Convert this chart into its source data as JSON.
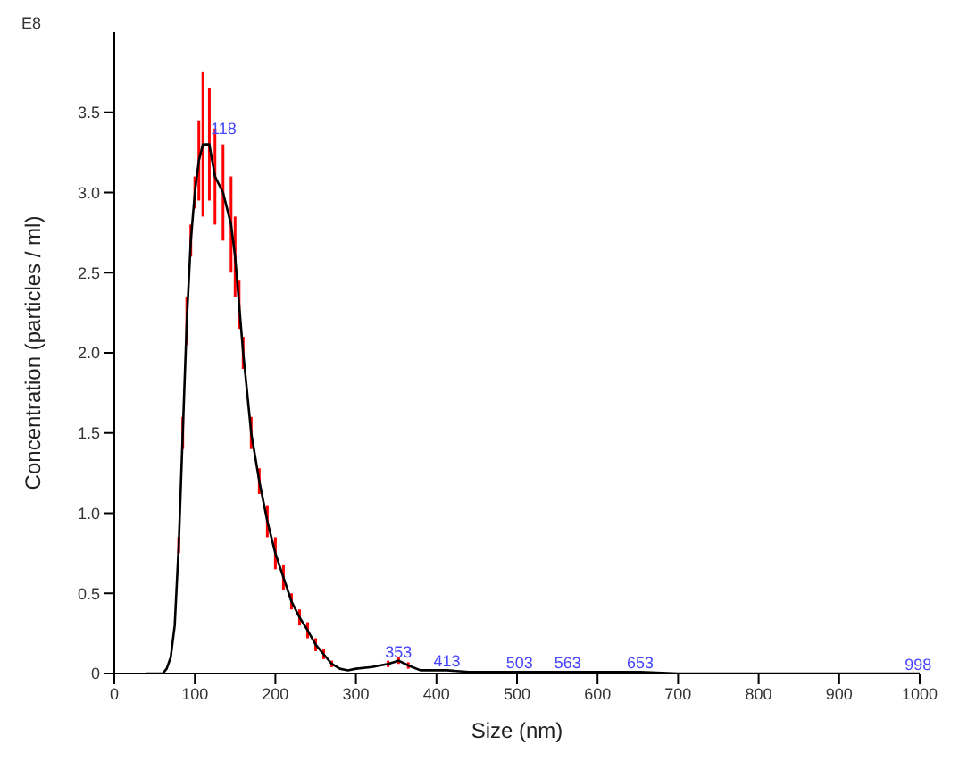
{
  "chart_data": {
    "type": "line",
    "xlabel": "Size (nm)",
    "ylabel": "Concentration (particles / ml)",
    "x": [
      40,
      60,
      65,
      70,
      75,
      80,
      85,
      90,
      95,
      100,
      105,
      110,
      118,
      125,
      135,
      145,
      150,
      155,
      160,
      170,
      180,
      190,
      200,
      210,
      220,
      230,
      240,
      250,
      260,
      270,
      280,
      290,
      300,
      320,
      340,
      353,
      365,
      380,
      400,
      413,
      440,
      503,
      563,
      653,
      700,
      800,
      998,
      1000
    ],
    "series": [
      {
        "color": "#000000",
        "values": [
          0,
          0,
          0.03,
          0.1,
          0.3,
          0.8,
          1.5,
          2.2,
          2.7,
          3.0,
          3.2,
          3.3,
          3.3,
          3.1,
          3.0,
          2.8,
          2.6,
          2.3,
          2.0,
          1.5,
          1.2,
          0.95,
          0.75,
          0.6,
          0.45,
          0.35,
          0.27,
          0.18,
          0.12,
          0.06,
          0.03,
          0.02,
          0.03,
          0.04,
          0.06,
          0.08,
          0.05,
          0.02,
          0.02,
          0.02,
          0.01,
          0.01,
          0.01,
          0.01,
          0,
          0,
          0,
          0
        ],
        "errors": [
          null,
          null,
          null,
          null,
          null,
          0.05,
          0.1,
          0.15,
          0.1,
          0.1,
          0.25,
          0.45,
          0.35,
          0.3,
          0.3,
          0.3,
          0.25,
          0.15,
          0.1,
          0.1,
          0.08,
          0.1,
          0.1,
          0.08,
          0.05,
          0.05,
          0.05,
          0.04,
          0.03,
          0.02,
          null,
          null,
          null,
          null,
          0.02,
          0.02,
          0.02,
          null,
          null,
          null,
          null,
          null,
          null,
          null,
          null,
          null,
          null,
          null
        ]
      }
    ],
    "xlim": [
      0,
      1000
    ],
    "xticks": [
      0,
      100,
      200,
      300,
      400,
      500,
      600,
      700,
      800,
      900,
      1000
    ],
    "ylim": [
      0,
      4.0
    ],
    "yticks": [
      0,
      0.5,
      {
        "value": 1,
        "label": "1.0"
      },
      1.5,
      {
        "value": 2,
        "label": "2.0"
      },
      2.5,
      {
        "value": 3,
        "label": "3.0"
      },
      3.5
    ],
    "marker": "none",
    "grid": false,
    "legend": false,
    "annotations": [
      "E8",
      {
        "text": "118",
        "x": 118,
        "y": 3.3
      },
      {
        "text": "353",
        "x": 353,
        "y": 0.08
      },
      {
        "text": "413",
        "x": 413,
        "y": 0.02
      },
      {
        "text": "503",
        "x": 503,
        "y": 0.01
      },
      {
        "text": "563",
        "x": 563,
        "y": 0.01
      },
      {
        "text": "653",
        "x": 653,
        "y": 0.01
      },
      {
        "text": "998",
        "x": 998,
        "y": 0
      }
    ]
  }
}
